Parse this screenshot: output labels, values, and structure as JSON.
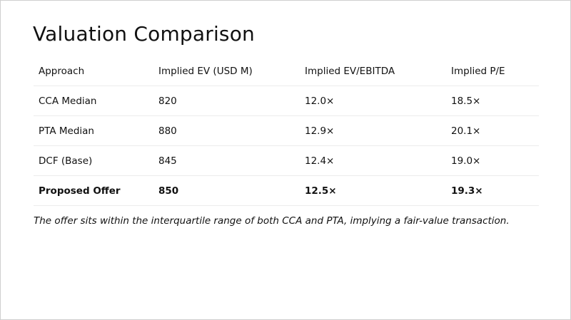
{
  "slide": {
    "title": "Valuation Comparison",
    "table": {
      "headers": [
        "Approach",
        "Implied EV (USD M)",
        "Implied EV/EBITDA",
        "Implied P/E"
      ],
      "rows": [
        {
          "approach": "CCA Median",
          "ev": "820",
          "ev_ebitda": "12.0×",
          "pe": "18.5×"
        },
        {
          "approach": "PTA Median",
          "ev": "880",
          "ev_ebitda": "12.9×",
          "pe": "20.1×"
        },
        {
          "approach": "DCF (Base)",
          "ev": "845",
          "ev_ebitda": "12.4×",
          "pe": "19.0×"
        },
        {
          "approach": "Proposed Offer",
          "ev": "850",
          "ev_ebitda": "12.5×",
          "pe": "19.3×"
        }
      ]
    },
    "note": "The offer sits within the interquartile range of both CCA and PTA, implying a fair-value transaction."
  }
}
